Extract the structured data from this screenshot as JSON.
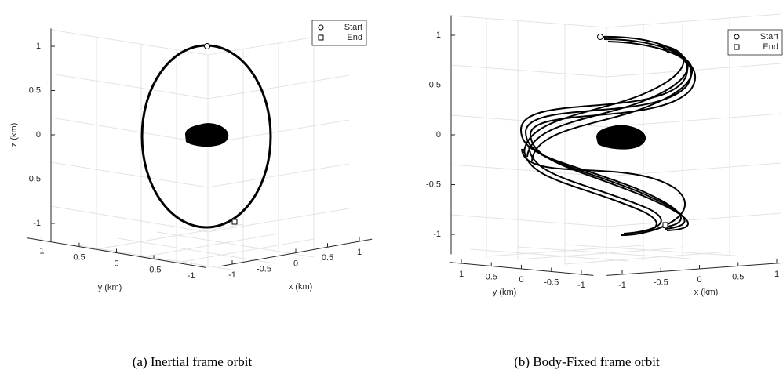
{
  "chart_data": [
    {
      "type": "line3d",
      "caption": "(a) Inertial frame orbit",
      "xlabel": "x (km)",
      "ylabel": "y (km)",
      "zlabel": "z (km)",
      "xlim": [
        -1.2,
        1.2
      ],
      "ylim": [
        -1.2,
        1.2
      ],
      "zlim": [
        -1.2,
        1.2
      ],
      "xticks": [
        -1,
        -0.5,
        0,
        0.5,
        1
      ],
      "yticks": [
        1,
        0.5,
        0,
        -0.5,
        -1
      ],
      "zticks": [
        1,
        0.5,
        0,
        -0.5,
        -1
      ],
      "grid": true,
      "series": [
        {
          "name": "Start",
          "marker": "circle"
        },
        {
          "name": "End",
          "marker": "square"
        }
      ]
    },
    {
      "type": "line3d",
      "caption": "(b) Body-Fixed frame orbit",
      "xlabel": "x (km)",
      "ylabel": "y (km)",
      "zlabel": "",
      "xlim": [
        -1.2,
        1.2
      ],
      "ylim": [
        -1.2,
        1.2
      ],
      "zlim": [
        -1.2,
        1.2
      ],
      "xticks": [
        -1,
        -0.5,
        0,
        0.5,
        1
      ],
      "yticks": [
        1,
        0.5,
        0,
        -0.5,
        -1
      ],
      "zticks": [
        1,
        0.5,
        0,
        -0.5,
        -1
      ],
      "grid": true,
      "series": [
        {
          "name": "Start",
          "marker": "circle"
        },
        {
          "name": "End",
          "marker": "square"
        }
      ]
    }
  ]
}
